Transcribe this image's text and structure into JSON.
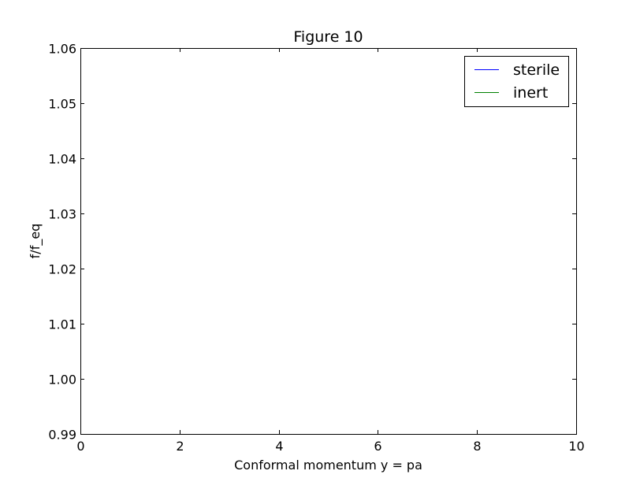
{
  "chart_data": {
    "type": "line",
    "title": "Figure 10",
    "xlabel": "Conformal momentum y = pa",
    "ylabel": "f/f_eq",
    "xlim": [
      0,
      10
    ],
    "ylim": [
      0.99,
      1.06
    ],
    "xticks": [
      0,
      2,
      4,
      6,
      8,
      10
    ],
    "xtick_labels": [
      "0",
      "2",
      "4",
      "6",
      "8",
      "10"
    ],
    "yticks": [
      0.99,
      1.0,
      1.01,
      1.02,
      1.03,
      1.04,
      1.05,
      1.06
    ],
    "ytick_labels": [
      "0.99",
      "1.00",
      "1.01",
      "1.02",
      "1.03",
      "1.04",
      "1.05",
      "1.06"
    ],
    "grid": false,
    "legend_position": "top-right",
    "series": [
      {
        "name": "sterile",
        "color": "#0000ff",
        "x": [],
        "y": []
      },
      {
        "name": "inert",
        "color": "#008000",
        "x": [],
        "y": []
      }
    ]
  }
}
